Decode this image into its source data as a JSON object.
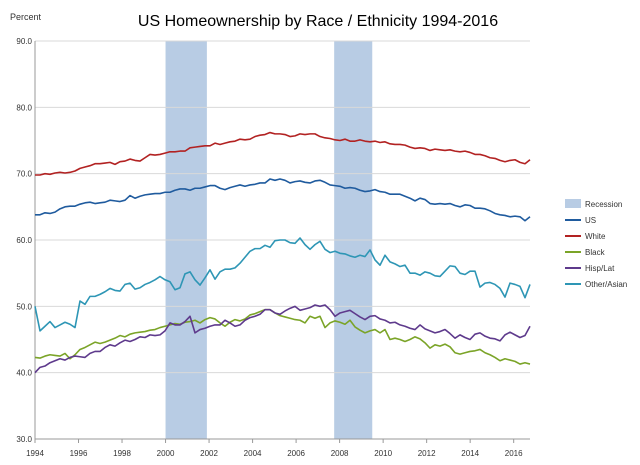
{
  "chart_data": {
    "type": "line",
    "title": "US Homeownership by Race / Ethnicity 1994-2016",
    "ylabel": "Percent",
    "xlabel": "",
    "ylim": [
      30,
      90
    ],
    "yticks": [
      30,
      40,
      50,
      60,
      70,
      80,
      90
    ],
    "ytick_labels": [
      "30.0",
      "40.0",
      "50.0",
      "60.0",
      "70.0",
      "80.0",
      "90.0"
    ],
    "xlim": [
      1994,
      2016.75
    ],
    "xticks": [
      1994,
      1996,
      1998,
      2000,
      2002,
      2004,
      2006,
      2008,
      2010,
      2012,
      2014,
      2016
    ],
    "xtick_labels": [
      "1994",
      "1996",
      "1998",
      "2000",
      "2002",
      "2004",
      "2006",
      "2008",
      "2010",
      "2012",
      "2014",
      "2016"
    ],
    "legend_position": "right",
    "recession": {
      "name": "Recession",
      "color": "#b8cce4",
      "periods": [
        [
          2000.0,
          2001.9
        ],
        [
          2007.75,
          2009.5
        ]
      ]
    },
    "series": [
      {
        "name": "US",
        "color": "#1f5b9e",
        "values": [
          63.8,
          63.8,
          64.1,
          64.0,
          64.2,
          64.7,
          65.0,
          65.1,
          65.1,
          65.4,
          65.6,
          65.7,
          65.5,
          65.6,
          65.7,
          66.0,
          65.9,
          65.8,
          66.0,
          66.7,
          66.3,
          66.6,
          66.8,
          66.9,
          67.0,
          67.0,
          67.2,
          67.2,
          67.5,
          67.7,
          67.7,
          67.5,
          67.8,
          67.8,
          68.0,
          68.2,
          68.2,
          67.8,
          67.6,
          67.9,
          68.1,
          68.3,
          68.1,
          68.3,
          68.4,
          68.6,
          68.6,
          69.2,
          69.0,
          69.2,
          69.0,
          68.6,
          68.8,
          68.9,
          68.7,
          68.6,
          68.9,
          69.0,
          68.7,
          68.3,
          68.2,
          68.1,
          67.8,
          67.9,
          67.8,
          67.5,
          67.3,
          67.4,
          67.6,
          67.3,
          67.2,
          66.9,
          66.9,
          66.9,
          66.6,
          66.3,
          65.9,
          66.3,
          66.1,
          65.5,
          65.4,
          65.5,
          65.4,
          65.5,
          65.2,
          65.0,
          65.3,
          65.2,
          64.8,
          64.8,
          64.7,
          64.4,
          64.0,
          63.8,
          63.7,
          63.5,
          63.6,
          63.5,
          62.9,
          63.5
        ]
      },
      {
        "name": "White",
        "color": "#b22222",
        "values": [
          69.8,
          69.8,
          70.0,
          69.9,
          70.1,
          70.2,
          70.1,
          70.2,
          70.4,
          70.8,
          71.0,
          71.2,
          71.5,
          71.5,
          71.6,
          71.7,
          71.4,
          71.8,
          71.9,
          72.2,
          72.0,
          71.9,
          72.4,
          72.9,
          72.8,
          72.9,
          73.1,
          73.3,
          73.3,
          73.4,
          73.4,
          73.9,
          74.0,
          74.1,
          74.2,
          74.2,
          74.6,
          74.4,
          74.6,
          74.8,
          74.9,
          75.2,
          75.1,
          75.2,
          75.6,
          75.8,
          75.9,
          76.2,
          76.0,
          76.0,
          75.9,
          75.6,
          75.7,
          76.0,
          75.9,
          76.0,
          76.0,
          75.6,
          75.4,
          75.3,
          75.1,
          75.0,
          75.2,
          74.9,
          74.9,
          75.1,
          74.9,
          74.8,
          74.9,
          74.7,
          74.8,
          74.5,
          74.4,
          74.4,
          74.3,
          74.0,
          73.8,
          73.9,
          73.8,
          73.5,
          73.7,
          73.6,
          73.5,
          73.6,
          73.4,
          73.3,
          73.4,
          73.2,
          72.9,
          72.9,
          72.7,
          72.4,
          72.3,
          72.0,
          71.8,
          72.0,
          72.1,
          71.7,
          71.5,
          72.1
        ]
      },
      {
        "name": "Black",
        "color": "#7ba428",
        "values": [
          42.3,
          42.2,
          42.5,
          42.7,
          42.6,
          42.5,
          42.9,
          42.1,
          42.7,
          43.5,
          43.8,
          44.2,
          44.6,
          44.4,
          44.6,
          44.9,
          45.2,
          45.6,
          45.4,
          45.8,
          46.0,
          46.1,
          46.2,
          46.4,
          46.5,
          46.8,
          47.0,
          47.2,
          47.4,
          47.3,
          47.6,
          47.7,
          47.9,
          47.5,
          48.0,
          48.3,
          48.1,
          47.5,
          47.0,
          47.6,
          48.0,
          47.8,
          48.1,
          48.7,
          48.9,
          49.2,
          49.5,
          49.5,
          49.0,
          48.6,
          48.4,
          48.2,
          48.0,
          47.9,
          47.5,
          48.5,
          48.2,
          48.5,
          46.8,
          47.5,
          47.8,
          47.6,
          47.3,
          47.9,
          46.9,
          46.4,
          46.0,
          46.3,
          46.5,
          46.0,
          46.5,
          45.0,
          45.2,
          45.0,
          44.7,
          45.0,
          45.4,
          45.1,
          44.5,
          43.7,
          44.2,
          44.0,
          44.3,
          43.9,
          43.0,
          42.8,
          43.0,
          43.2,
          43.3,
          43.5,
          43.0,
          42.7,
          42.3,
          41.8,
          42.1,
          41.9,
          41.7,
          41.3,
          41.5,
          41.3
        ]
      },
      {
        "name": "Hisp/Lat",
        "color": "#5e3a8c",
        "values": [
          40.0,
          40.8,
          41.0,
          41.5,
          41.8,
          42.1,
          41.9,
          42.3,
          42.5,
          42.4,
          42.3,
          42.9,
          43.2,
          43.2,
          43.8,
          44.2,
          44.0,
          44.5,
          44.9,
          44.7,
          45.0,
          45.4,
          45.3,
          45.7,
          45.6,
          45.7,
          46.3,
          47.5,
          47.2,
          47.2,
          47.7,
          48.5,
          46.0,
          46.5,
          46.7,
          47.0,
          47.2,
          47.2,
          47.9,
          47.5,
          47.0,
          47.2,
          47.9,
          48.3,
          48.5,
          48.8,
          49.5,
          49.5,
          49.0,
          48.8,
          49.3,
          49.7,
          50.0,
          49.4,
          49.6,
          49.8,
          50.2,
          50.0,
          50.2,
          49.5,
          48.5,
          49.0,
          49.2,
          49.4,
          48.9,
          48.4,
          48.0,
          48.5,
          48.6,
          48.1,
          47.9,
          47.5,
          47.6,
          47.2,
          47.0,
          46.7,
          46.5,
          47.2,
          46.6,
          46.3,
          46.0,
          46.2,
          46.5,
          45.9,
          45.2,
          45.7,
          45.3,
          45.0,
          45.8,
          46.0,
          45.5,
          45.2,
          45.1,
          44.8,
          45.7,
          46.1,
          45.7,
          45.3,
          45.6,
          47.0
        ]
      },
      {
        "name": "Other/Asian",
        "color": "#2e96b5",
        "values": [
          50.0,
          46.3,
          47.0,
          47.7,
          46.8,
          47.2,
          47.6,
          47.3,
          46.8,
          50.8,
          50.3,
          51.5,
          51.5,
          51.8,
          52.2,
          52.7,
          52.4,
          52.3,
          53.3,
          53.5,
          52.6,
          52.8,
          53.3,
          53.6,
          54.0,
          54.5,
          54.0,
          53.7,
          52.5,
          52.8,
          54.9,
          55.2,
          54.0,
          53.2,
          54.3,
          55.5,
          54.1,
          55.2,
          55.6,
          55.6,
          55.8,
          56.5,
          57.4,
          58.3,
          58.7,
          58.7,
          59.2,
          58.9,
          59.9,
          60.0,
          60.0,
          59.6,
          59.5,
          60.3,
          59.3,
          58.6,
          59.3,
          59.8,
          58.6,
          58.1,
          58.3,
          58.0,
          57.9,
          57.6,
          57.4,
          57.7,
          57.5,
          58.5,
          57.0,
          56.2,
          57.7,
          56.7,
          56.4,
          56.0,
          56.2,
          55.0,
          55.0,
          54.7,
          55.2,
          55.0,
          54.6,
          54.5,
          55.3,
          56.1,
          56.0,
          55.0,
          54.8,
          55.3,
          55.3,
          52.9,
          53.5,
          53.6,
          53.3,
          52.7,
          51.4,
          53.5,
          53.3,
          53.0,
          51.3,
          53.3
        ]
      }
    ]
  }
}
